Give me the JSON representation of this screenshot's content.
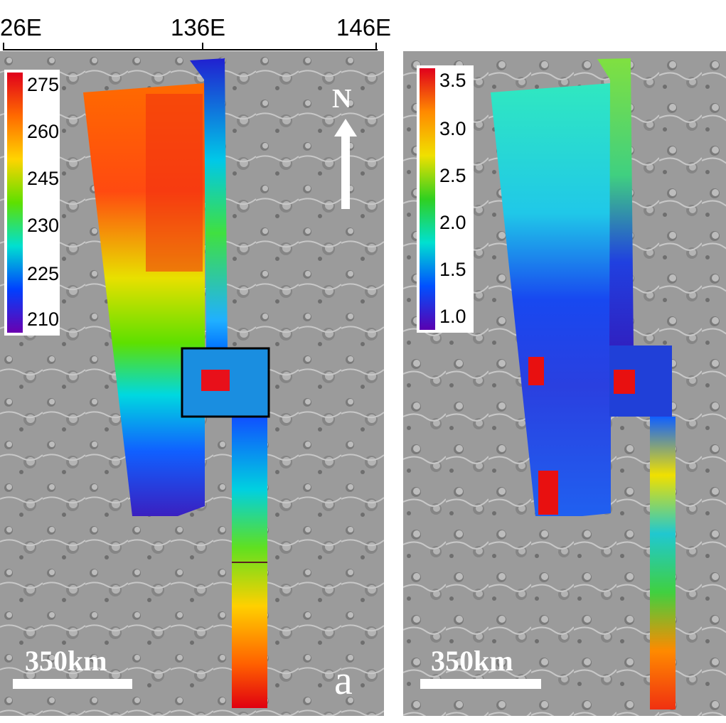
{
  "axis": {
    "longitudes": [
      "26E",
      "136E",
      "146E"
    ]
  },
  "panel_a": {
    "colorbar": {
      "labels": [
        "275",
        "260",
        "245",
        "230",
        "225",
        "210"
      ],
      "colors": [
        "#e0001c",
        "#ff6a00",
        "#ffd400",
        "#5ee000",
        "#00e0d0",
        "#0040ff",
        "#6a00b0"
      ]
    },
    "north_label": "N",
    "scale_label": "350km",
    "panel_label": "a"
  },
  "panel_b": {
    "colorbar": {
      "labels": [
        "3.5",
        "3.0",
        "2.5",
        "2.0",
        "1.5",
        "1.0"
      ],
      "colors": [
        "#e0001c",
        "#ff8a00",
        "#f0e000",
        "#30d020",
        "#00e0d0",
        "#0050ff",
        "#5a00b0"
      ]
    },
    "scale_label": "350km"
  }
}
